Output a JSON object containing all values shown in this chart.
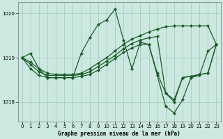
{
  "title": "Graphe pression niveau de la mer (hPa)",
  "bg_color": "#cce8e0",
  "grid_color": "#99ccbb",
  "line_color": "#1a5c28",
  "xlim": [
    -0.5,
    23.5
  ],
  "ylim": [
    1017.55,
    1020.25
  ],
  "yticks": [
    1018,
    1019,
    1020
  ],
  "xticks": [
    0,
    1,
    2,
    3,
    4,
    5,
    6,
    7,
    8,
    9,
    10,
    11,
    12,
    13,
    14,
    15,
    16,
    17,
    18,
    19,
    20,
    21,
    22,
    23
  ],
  "main_data": [
    1019.0,
    1019.1,
    1018.75,
    1018.55,
    1018.55,
    1018.55,
    1018.55,
    1019.1,
    1019.45,
    1019.75,
    1019.85,
    1020.1,
    1019.4,
    1018.75,
    1019.35,
    1019.3,
    1018.6,
    1017.9,
    1017.75,
    1018.05,
    1018.55,
    1018.6,
    1019.15,
    1019.3
  ],
  "line2": [
    1019.0,
    1018.9,
    1018.75,
    1018.65,
    1018.62,
    1018.62,
    1018.62,
    1018.65,
    1018.75,
    1018.88,
    1019.0,
    1019.15,
    1019.3,
    1019.42,
    1019.5,
    1019.58,
    1019.65,
    1019.7,
    1019.72,
    1019.72,
    1019.72,
    1019.72,
    1019.72,
    1019.3
  ],
  "line3": [
    1019.0,
    1018.85,
    1018.68,
    1018.6,
    1018.6,
    1018.6,
    1018.6,
    1018.62,
    1018.68,
    1018.8,
    1018.92,
    1019.05,
    1019.2,
    1019.32,
    1019.4,
    1019.45,
    1019.48,
    1018.2,
    1018.05,
    1018.55,
    1018.58,
    1018.62,
    1018.65,
    1019.3
  ],
  "line4": [
    1019.0,
    1018.75,
    1018.6,
    1018.55,
    1018.55,
    1018.55,
    1018.55,
    1018.58,
    1018.62,
    1018.72,
    1018.85,
    1018.98,
    1019.12,
    1019.22,
    1019.3,
    1019.3,
    1018.65,
    1018.2,
    1018.0,
    1018.55,
    1018.58,
    1018.62,
    1018.65,
    1019.3
  ]
}
